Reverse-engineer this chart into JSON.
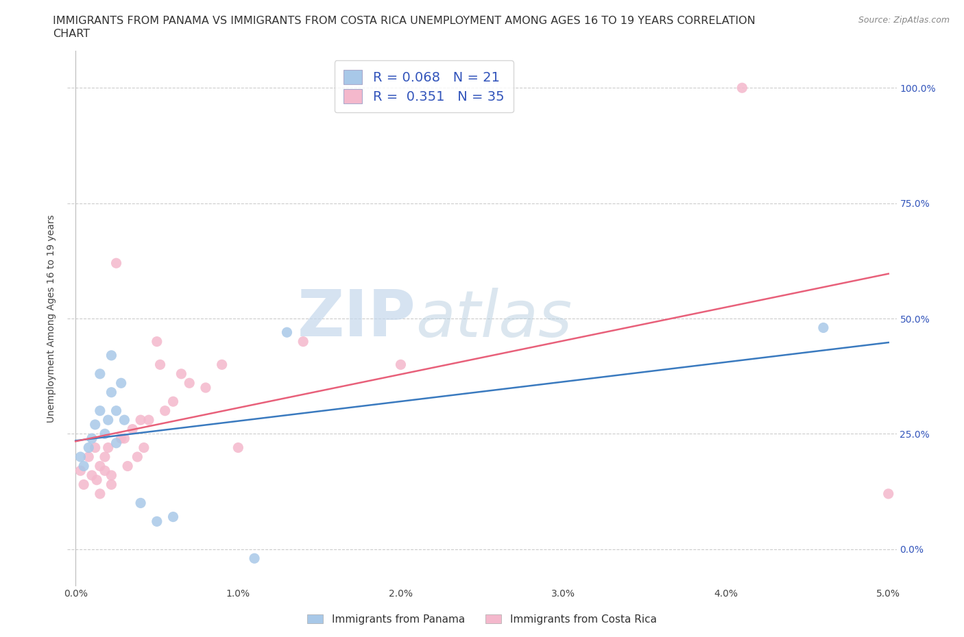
{
  "title_line1": "IMMIGRANTS FROM PANAMA VS IMMIGRANTS FROM COSTA RICA UNEMPLOYMENT AMONG AGES 16 TO 19 YEARS CORRELATION",
  "title_line2": "CHART",
  "source": "Source: ZipAtlas.com",
  "ylabel": "Unemployment Among Ages 16 to 19 years",
  "xlim": [
    -0.0005,
    0.0505
  ],
  "ylim": [
    -0.08,
    1.08
  ],
  "x_ticks": [
    0.0,
    0.01,
    0.02,
    0.03,
    0.04,
    0.05
  ],
  "x_tick_labels": [
    "0.0%",
    "1.0%",
    "2.0%",
    "3.0%",
    "4.0%",
    "5.0%"
  ],
  "y_ticks": [
    0.0,
    0.25,
    0.5,
    0.75,
    1.0
  ],
  "y_tick_labels": [
    "0.0%",
    "25.0%",
    "50.0%",
    "75.0%",
    "100.0%"
  ],
  "panama_color": "#a8c8e8",
  "panama_line_color": "#3a7abf",
  "costarica_color": "#f4b8cc",
  "costarica_line_color": "#e8607a",
  "R_panama": 0.068,
  "N_panama": 21,
  "R_costarica": 0.351,
  "N_costarica": 35,
  "panama_x": [
    0.0003,
    0.0005,
    0.0008,
    0.001,
    0.0012,
    0.0015,
    0.0015,
    0.0018,
    0.002,
    0.0022,
    0.0022,
    0.0025,
    0.0025,
    0.0028,
    0.003,
    0.004,
    0.005,
    0.006,
    0.011,
    0.013,
    0.046
  ],
  "panama_y": [
    0.2,
    0.18,
    0.22,
    0.24,
    0.27,
    0.3,
    0.38,
    0.25,
    0.28,
    0.34,
    0.42,
    0.23,
    0.3,
    0.36,
    0.28,
    0.1,
    0.06,
    0.07,
    -0.02,
    0.47,
    0.48
  ],
  "costarica_x": [
    0.0003,
    0.0005,
    0.0008,
    0.001,
    0.0012,
    0.0013,
    0.0015,
    0.0015,
    0.0018,
    0.0018,
    0.002,
    0.0022,
    0.0022,
    0.0025,
    0.0028,
    0.003,
    0.0032,
    0.0035,
    0.0038,
    0.004,
    0.0042,
    0.0045,
    0.005,
    0.0052,
    0.0055,
    0.006,
    0.0065,
    0.007,
    0.008,
    0.009,
    0.01,
    0.014,
    0.02,
    0.041,
    0.05
  ],
  "costarica_y": [
    0.17,
    0.14,
    0.2,
    0.16,
    0.22,
    0.15,
    0.18,
    0.12,
    0.2,
    0.17,
    0.22,
    0.14,
    0.16,
    0.62,
    0.24,
    0.24,
    0.18,
    0.26,
    0.2,
    0.28,
    0.22,
    0.28,
    0.45,
    0.4,
    0.3,
    0.32,
    0.38,
    0.36,
    0.35,
    0.4,
    0.22,
    0.45,
    0.4,
    1.0,
    0.12
  ],
  "background_color": "#ffffff",
  "grid_color": "#cccccc",
  "watermark_zip": "ZIP",
  "watermark_atlas": "atlas",
  "legend_text_color": "#3355bb",
  "title_fontsize": 11.5,
  "axis_label_fontsize": 10,
  "tick_fontsize": 10,
  "legend_fontsize": 14,
  "source_fontsize": 9
}
